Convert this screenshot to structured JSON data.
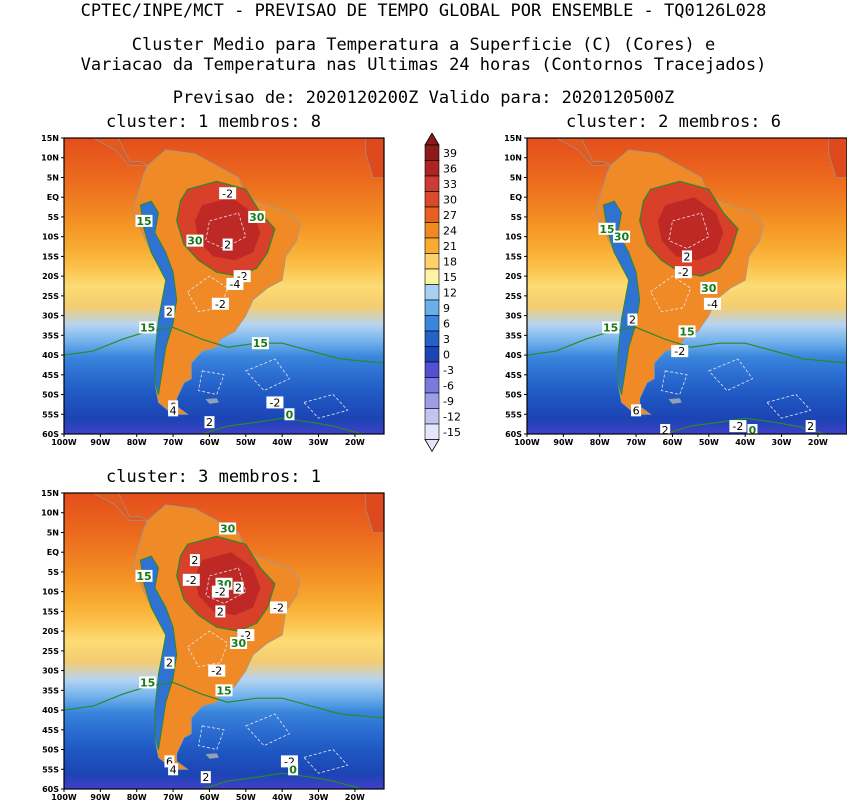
{
  "header": {
    "line1": "CPTEC/INPE/MCT - PREVISAO DE TEMPO GLOBAL POR ENSEMBLE - TQ0126L028",
    "line2": "Cluster Medio para Temperatura a Superficie (C) (Cores) e",
    "line3": "Variacao da Temperatura nas Ultimas 24 horas (Contornos Tracejados)",
    "line4": "Previsao de: 2020120200Z    Valido para: 2020120500Z"
  },
  "lat_ticks": [
    "15N",
    "10N",
    "5N",
    "EQ",
    "5S",
    "10S",
    "15S",
    "20S",
    "25S",
    "30S",
    "35S",
    "40S",
    "45S",
    "50S",
    "55S",
    "60S"
  ],
  "lon_ticks": [
    "100W",
    "90W",
    "80W",
    "70W",
    "60W",
    "50W",
    "40W",
    "30W",
    "20W"
  ],
  "colorbar": {
    "labels": [
      "39",
      "36",
      "33",
      "30",
      "27",
      "24",
      "21",
      "18",
      "15",
      "12",
      "9",
      "6",
      "3",
      "0",
      "-3",
      "-6",
      "-9",
      "-12",
      "-15"
    ],
    "colors": [
      "#8c1a1a",
      "#b02222",
      "#cc3a30",
      "#d94a2a",
      "#e86020",
      "#f08a20",
      "#f8ac30",
      "#fdd26a",
      "#fff2a0",
      "#a8d0f4",
      "#6aaeec",
      "#3a86dc",
      "#2462c8",
      "#1c44b4",
      "#5050d0",
      "#7a7ade",
      "#9e9ee8",
      "#c4c4f2",
      "#e4e4fa"
    ]
  },
  "panels": [
    {
      "title": "cluster: 1   membros: 8",
      "labels": [
        {
          "text": "-2",
          "lon": -55,
          "lat": 1,
          "type": "var"
        },
        {
          "text": "30",
          "lon": -47,
          "lat": -5,
          "type": "temp"
        },
        {
          "text": "15",
          "lon": -78,
          "lat": -6,
          "type": "temp"
        },
        {
          "text": "30",
          "lon": -64,
          "lat": -11,
          "type": "temp"
        },
        {
          "text": "2",
          "lon": -55,
          "lat": -12,
          "type": "var"
        },
        {
          "text": "-2",
          "lon": -51,
          "lat": -20,
          "type": "var"
        },
        {
          "text": "-4",
          "lon": -53,
          "lat": -22,
          "type": "var"
        },
        {
          "text": "-2",
          "lon": -57,
          "lat": -27,
          "type": "var"
        },
        {
          "text": "2",
          "lon": -71,
          "lat": -29,
          "type": "var"
        },
        {
          "text": "15",
          "lon": -77,
          "lat": -33,
          "type": "temp"
        },
        {
          "text": "15",
          "lon": -46,
          "lat": -37,
          "type": "temp"
        },
        {
          "text": "6",
          "lon": -70,
          "lat": -53,
          "type": "var"
        },
        {
          "text": "4",
          "lon": -70,
          "lat": -54,
          "type": "var"
        },
        {
          "text": "-2",
          "lon": -42,
          "lat": -52,
          "type": "var"
        },
        {
          "text": "0",
          "lon": -38,
          "lat": -55,
          "type": "temp"
        },
        {
          "text": "2",
          "lon": -60,
          "lat": -57,
          "type": "var"
        }
      ]
    },
    {
      "title": "cluster: 2   membros: 6",
      "labels": [
        {
          "text": "15",
          "lon": -78,
          "lat": -8,
          "type": "temp"
        },
        {
          "text": "30",
          "lon": -74,
          "lat": -10,
          "type": "temp"
        },
        {
          "text": "2",
          "lon": -56,
          "lat": -15,
          "type": "var"
        },
        {
          "text": "-2",
          "lon": -57,
          "lat": -19,
          "type": "var"
        },
        {
          "text": "30",
          "lon": -50,
          "lat": -23,
          "type": "temp"
        },
        {
          "text": "-4",
          "lon": -49,
          "lat": -27,
          "type": "var"
        },
        {
          "text": "2",
          "lon": -71,
          "lat": -31,
          "type": "var"
        },
        {
          "text": "15",
          "lon": -77,
          "lat": -33,
          "type": "temp"
        },
        {
          "text": "15",
          "lon": -56,
          "lat": -34,
          "type": "temp"
        },
        {
          "text": "-2",
          "lon": -58,
          "lat": -39,
          "type": "var"
        },
        {
          "text": "6",
          "lon": -70,
          "lat": -54,
          "type": "var"
        },
        {
          "text": "-2",
          "lon": -42,
          "lat": -58,
          "type": "var"
        },
        {
          "text": "0",
          "lon": -38,
          "lat": -59,
          "type": "temp"
        },
        {
          "text": "2",
          "lon": -62,
          "lat": -59,
          "type": "var"
        },
        {
          "text": "2",
          "lon": -22,
          "lat": -58,
          "type": "var"
        }
      ]
    },
    {
      "title": "cluster: 3   membros: 1",
      "labels": [
        {
          "text": "30",
          "lon": -55,
          "lat": 6,
          "type": "temp"
        },
        {
          "text": "2",
          "lon": -64,
          "lat": -2,
          "type": "var"
        },
        {
          "text": "15",
          "lon": -78,
          "lat": -6,
          "type": "temp"
        },
        {
          "text": "-2",
          "lon": -65,
          "lat": -7,
          "type": "var"
        },
        {
          "text": "30",
          "lon": -56,
          "lat": -8,
          "type": "temp"
        },
        {
          "text": "2",
          "lon": -52,
          "lat": -9,
          "type": "var"
        },
        {
          "text": "-2",
          "lon": -57,
          "lat": -10,
          "type": "var"
        },
        {
          "text": "-2",
          "lon": -41,
          "lat": -14,
          "type": "var"
        },
        {
          "text": "2",
          "lon": -57,
          "lat": -15,
          "type": "var"
        },
        {
          "text": "-2",
          "lon": -50,
          "lat": -21,
          "type": "var"
        },
        {
          "text": "30",
          "lon": -52,
          "lat": -23,
          "type": "temp"
        },
        {
          "text": "2",
          "lon": -71,
          "lat": -28,
          "type": "var"
        },
        {
          "text": "-2",
          "lon": -58,
          "lat": -30,
          "type": "var"
        },
        {
          "text": "15",
          "lon": -77,
          "lat": -33,
          "type": "temp"
        },
        {
          "text": "15",
          "lon": -56,
          "lat": -35,
          "type": "temp"
        },
        {
          "text": "6",
          "lon": -71,
          "lat": -53,
          "type": "var"
        },
        {
          "text": "4",
          "lon": -70,
          "lat": -55,
          "type": "var"
        },
        {
          "text": "-2",
          "lon": -38,
          "lat": -53,
          "type": "var"
        },
        {
          "text": "0",
          "lon": -37,
          "lat": -55,
          "type": "temp"
        },
        {
          "text": "2",
          "lon": -61,
          "lat": -57,
          "type": "var"
        }
      ]
    }
  ]
}
